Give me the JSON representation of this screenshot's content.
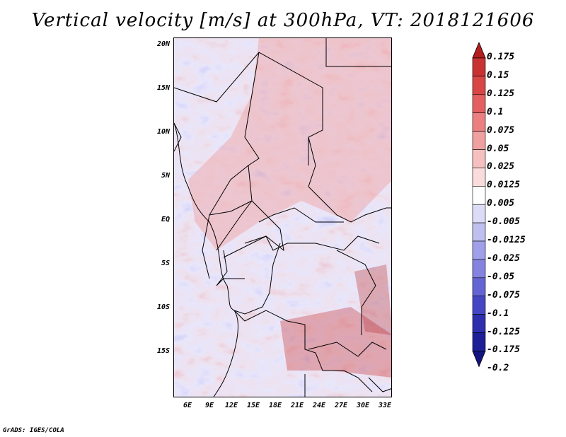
{
  "title": "Vertical velocity [m/s] at 300hPa, VT: 2018121606",
  "footer": "GrADS: IGES/COLA",
  "map": {
    "y_labels": [
      "20N",
      "15N",
      "10N",
      "5N",
      "EQ",
      "5S",
      "10S",
      "15S"
    ],
    "x_labels": [
      "6E",
      "9E",
      "12E",
      "15E",
      "18E",
      "21E",
      "24E",
      "27E",
      "30E",
      "33E"
    ]
  },
  "colorbar": {
    "labels": [
      "0.175",
      "0.15",
      "0.125",
      "0.1",
      "0.075",
      "0.05",
      "0.025",
      "0.0125",
      "0.005",
      "-0.005",
      "-0.0125",
      "-0.025",
      "-0.05",
      "-0.075",
      "-0.1",
      "-0.125",
      "-0.175",
      "-0.2"
    ],
    "colors": [
      "#b41e1e",
      "#c83232",
      "#d84646",
      "#e46060",
      "#ec8080",
      "#f0a0a0",
      "#f6c0c0",
      "#fadcdc",
      "#ffffff",
      "#dcdcf6",
      "#c0c0f0",
      "#a0a0ea",
      "#8484e0",
      "#6464d4",
      "#4646c4",
      "#2e2eae",
      "#1e1e96",
      "#141480"
    ]
  }
}
